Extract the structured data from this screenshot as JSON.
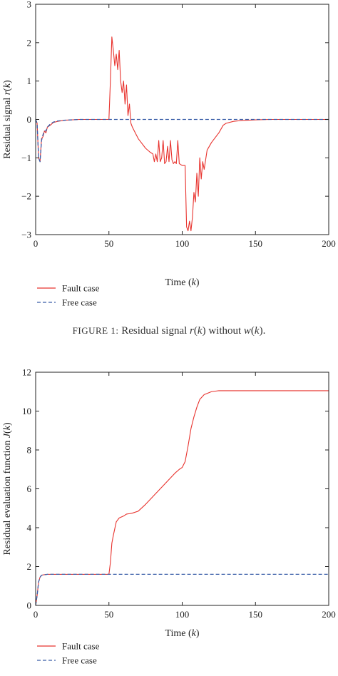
{
  "chart_data": [
    {
      "type": "line",
      "xlabel": "Time (k)",
      "ylabel": "Residual signal r(k)",
      "xlim": [
        0,
        200
      ],
      "ylim": [
        -3,
        3
      ],
      "xticks": [
        "0",
        "50",
        "100",
        "150",
        "200"
      ],
      "yticks": [
        "−3",
        "−2",
        "−1",
        "0",
        "1",
        "2",
        "3"
      ],
      "legend_position": "bottom-left, below plot",
      "grid": false,
      "caption": "Figure 1: Residual signal r(k) without w(k).",
      "series": [
        {
          "name": "Fault case",
          "color": "#e8332e",
          "style": "solid",
          "x": [
            0,
            1,
            2,
            3,
            4,
            5,
            6,
            7,
            8,
            10,
            12,
            15,
            20,
            30,
            40,
            50,
            51,
            52,
            53,
            54,
            55,
            56,
            57,
            58,
            59,
            60,
            61,
            62,
            63,
            64,
            65,
            66,
            68,
            70,
            72,
            75,
            78,
            80,
            81,
            82,
            83,
            84,
            85,
            86,
            87,
            88,
            89,
            90,
            91,
            92,
            93,
            94,
            95,
            96,
            97,
            98,
            100,
            102,
            103,
            104,
            105,
            106,
            107,
            108,
            109,
            110,
            111,
            112,
            113,
            114,
            115,
            117,
            120,
            125,
            128,
            130,
            135,
            140,
            145,
            150,
            160,
            170,
            180,
            200
          ],
          "y": [
            0,
            -0.1,
            -1.0,
            -1.1,
            -0.5,
            -0.45,
            -0.3,
            -0.35,
            -0.2,
            -0.15,
            -0.08,
            -0.05,
            -0.02,
            0,
            0,
            0,
            1.0,
            2.15,
            1.8,
            1.4,
            1.7,
            1.3,
            1.8,
            1.0,
            0.7,
            1.0,
            0.4,
            0.9,
            0.1,
            0.4,
            -0.1,
            -0.2,
            -0.35,
            -0.5,
            -0.6,
            -0.75,
            -0.85,
            -0.9,
            -1.1,
            -0.9,
            -1.1,
            -0.55,
            -1.1,
            -1.0,
            -0.55,
            -1.15,
            -1.1,
            -0.7,
            -1.1,
            -0.55,
            -1.05,
            -1.15,
            -1.1,
            -1.15,
            -0.55,
            -1.15,
            -1.2,
            -1.2,
            -2.8,
            -2.9,
            -2.65,
            -2.9,
            -2.55,
            -1.9,
            -2.15,
            -1.4,
            -2.0,
            -1.0,
            -1.55,
            -1.1,
            -1.3,
            -0.8,
            -0.6,
            -0.35,
            -0.15,
            -0.1,
            -0.05,
            -0.03,
            -0.02,
            -0.01,
            0,
            0,
            0,
            0
          ]
        },
        {
          "name": "Free case",
          "color": "#3a5ea8",
          "style": "dashed",
          "x": [
            0,
            1,
            2,
            3,
            4,
            5,
            6,
            7,
            8,
            10,
            12,
            15,
            20,
            25,
            30,
            200
          ],
          "y": [
            0,
            -0.1,
            -1.0,
            -1.1,
            -0.55,
            -0.4,
            -0.3,
            -0.3,
            -0.2,
            -0.12,
            -0.07,
            -0.04,
            -0.02,
            -0.01,
            0,
            0
          ]
        }
      ]
    },
    {
      "type": "line",
      "xlabel": "Time (k)",
      "ylabel": "Residual evaluation function J(k)",
      "xlim": [
        0,
        200
      ],
      "ylim": [
        0,
        12
      ],
      "xticks": [
        "0",
        "50",
        "100",
        "150",
        "200"
      ],
      "yticks": [
        "0",
        "2",
        "4",
        "6",
        "8",
        "10",
        "12"
      ],
      "legend_position": "bottom-left, below plot",
      "grid": false,
      "series": [
        {
          "name": "Fault case",
          "color": "#e8332e",
          "style": "solid",
          "x": [
            0,
            1,
            2,
            3,
            4,
            5,
            6,
            8,
            10,
            20,
            30,
            40,
            50,
            51,
            52,
            53,
            55,
            57,
            60,
            62,
            64,
            66,
            70,
            75,
            80,
            85,
            90,
            95,
            98,
            100,
            102,
            104,
            106,
            108,
            110,
            112,
            115,
            120,
            125,
            130,
            150,
            200
          ],
          "y": [
            0,
            0.5,
            1.2,
            1.45,
            1.55,
            1.57,
            1.58,
            1.6,
            1.6,
            1.6,
            1.6,
            1.6,
            1.6,
            2.2,
            3.2,
            3.6,
            4.3,
            4.5,
            4.6,
            4.7,
            4.72,
            4.75,
            4.85,
            5.2,
            5.6,
            6.0,
            6.4,
            6.8,
            7.0,
            7.1,
            7.4,
            8.2,
            9.1,
            9.7,
            10.2,
            10.6,
            10.85,
            11.0,
            11.05,
            11.05,
            11.05,
            11.05
          ]
        },
        {
          "name": "Free case",
          "color": "#3a5ea8",
          "style": "dashed",
          "x": [
            0,
            1,
            2,
            3,
            4,
            5,
            6,
            8,
            10,
            20,
            200
          ],
          "y": [
            0,
            0.5,
            1.2,
            1.45,
            1.55,
            1.57,
            1.58,
            1.6,
            1.6,
            1.6,
            1.6
          ]
        }
      ]
    }
  ]
}
